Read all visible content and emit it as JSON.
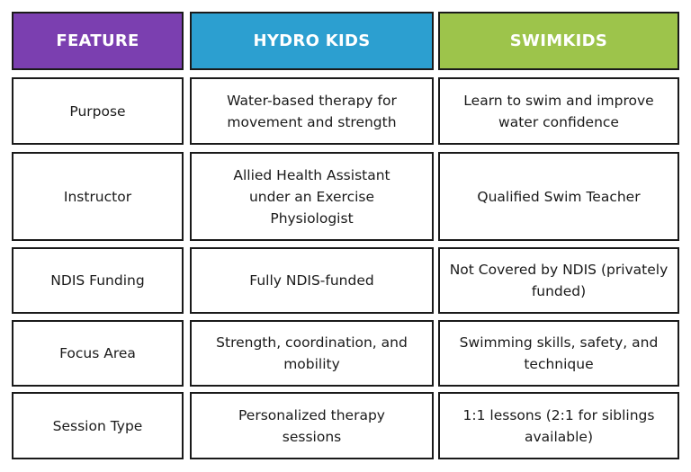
{
  "table": {
    "header": [
      "FEATURE",
      "HYDRO KIDS",
      "SWIMKIDS"
    ],
    "header_colors": [
      "#7b3fb0",
      "#2c9fd0",
      "#9dc44b"
    ],
    "rows": [
      [
        "Purpose",
        "Water-based therapy for movement and strength",
        "Learn to swim and improve water confidence"
      ],
      [
        "Instructor",
        "Allied Health Assistant under an Exercise Physiologist",
        "Qualified Swim Teacher"
      ],
      [
        "NDIS Funding",
        "Fully NDIS-funded",
        "Not Covered by NDIS (privately funded)"
      ],
      [
        "Focus Area",
        "Strength, coordination, and mobility",
        "Swimming skills, safety, and technique"
      ],
      [
        "Session Type",
        "Personalized therapy sessions",
        "1:1 lessons (2:1 for siblings available)"
      ]
    ]
  }
}
